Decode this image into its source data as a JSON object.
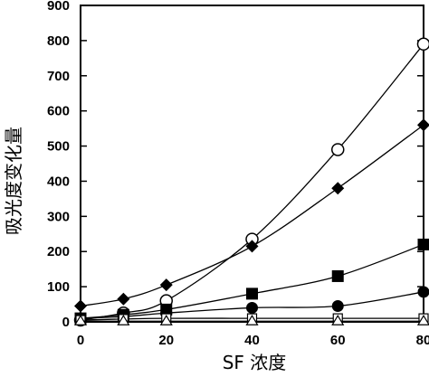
{
  "chart_data": {
    "type": "line",
    "xlabel": "SF 浓度",
    "ylabel": "吸光度变化量",
    "xlim": [
      0,
      80
    ],
    "ylim": [
      0,
      900
    ],
    "x_ticks": [
      "0",
      "20",
      "40",
      "60",
      "80"
    ],
    "y_ticks": [
      "0",
      "100",
      "200",
      "300",
      "400",
      "500",
      "600",
      "700",
      "800",
      "900"
    ],
    "grid": false,
    "series": [
      {
        "marker": "open-circle",
        "color": "#000000",
        "x": [
          0,
          10,
          20,
          40,
          60,
          80
        ],
        "y": [
          5,
          25,
          60,
          235,
          490,
          790
        ]
      },
      {
        "marker": "filled-diamond",
        "color": "#000000",
        "x": [
          0,
          10,
          20,
          40,
          60,
          80
        ],
        "y": [
          45,
          65,
          105,
          215,
          380,
          560
        ]
      },
      {
        "marker": "filled-square",
        "color": "#000000",
        "x": [
          0,
          10,
          20,
          40,
          60,
          80
        ],
        "y": [
          10,
          20,
          35,
          80,
          130,
          220
        ]
      },
      {
        "marker": "filled-circle",
        "color": "#000000",
        "x": [
          0,
          10,
          20,
          40,
          60,
          80
        ],
        "y": [
          10,
          15,
          25,
          40,
          45,
          85
        ]
      },
      {
        "marker": "open-square",
        "color": "#000000",
        "x": [
          0,
          10,
          20,
          40,
          60,
          80
        ],
        "y": [
          5,
          8,
          10,
          10,
          10,
          10
        ]
      },
      {
        "marker": "open-triangle",
        "color": "#000000",
        "x": [
          0,
          10,
          20,
          40,
          60,
          80
        ],
        "y": [
          2,
          2,
          2,
          2,
          2,
          2
        ]
      }
    ]
  }
}
